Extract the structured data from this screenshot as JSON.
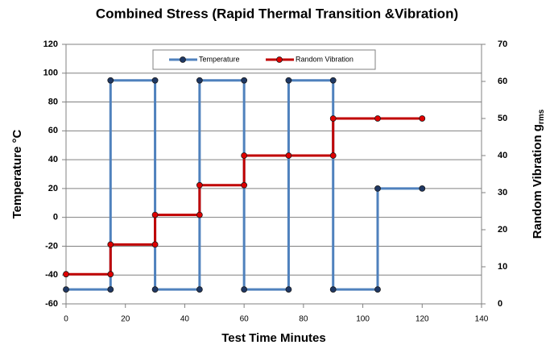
{
  "chart_data": {
    "type": "line",
    "title": "Combined Stress (Rapid Thermal Transition &Vibration)",
    "xlabel": "Test Time Minutes",
    "ylabel": "Temperature °C",
    "y2label": "Random Vibration g",
    "y2label_subscript": "rms",
    "xlim": [
      0,
      140
    ],
    "xticks": [
      0,
      20,
      40,
      60,
      80,
      100,
      120,
      140
    ],
    "ylim": [
      -60,
      120
    ],
    "yticks": [
      -60,
      -40,
      -20,
      0,
      20,
      40,
      60,
      80,
      100,
      120
    ],
    "y2lim": [
      0,
      70
    ],
    "y2ticks": [
      0,
      10,
      20,
      30,
      40,
      50,
      60,
      70
    ],
    "grid": true,
    "legend": "top",
    "series": [
      {
        "name": "Temperature",
        "color": "#4f81bd",
        "marker_color": "#1f3864",
        "x": [
          0,
          15,
          15,
          30,
          30,
          45,
          45,
          60,
          60,
          75,
          75,
          90,
          90,
          105,
          105,
          120
        ],
        "values": [
          -50,
          -50,
          95,
          95,
          -50,
          -50,
          95,
          95,
          -50,
          -50,
          95,
          95,
          -50,
          -50,
          20,
          20
        ]
      },
      {
        "name": "Random Vibration",
        "color": "#c00000",
        "marker_color": "#e00000",
        "axis": "y2",
        "x": [
          0,
          15,
          15,
          30,
          30,
          45,
          45,
          60,
          60,
          75,
          90,
          90,
          105,
          120
        ],
        "values": [
          8,
          8,
          16,
          16,
          24,
          24,
          32,
          32,
          40,
          40,
          40,
          50,
          50,
          50
        ]
      }
    ]
  }
}
